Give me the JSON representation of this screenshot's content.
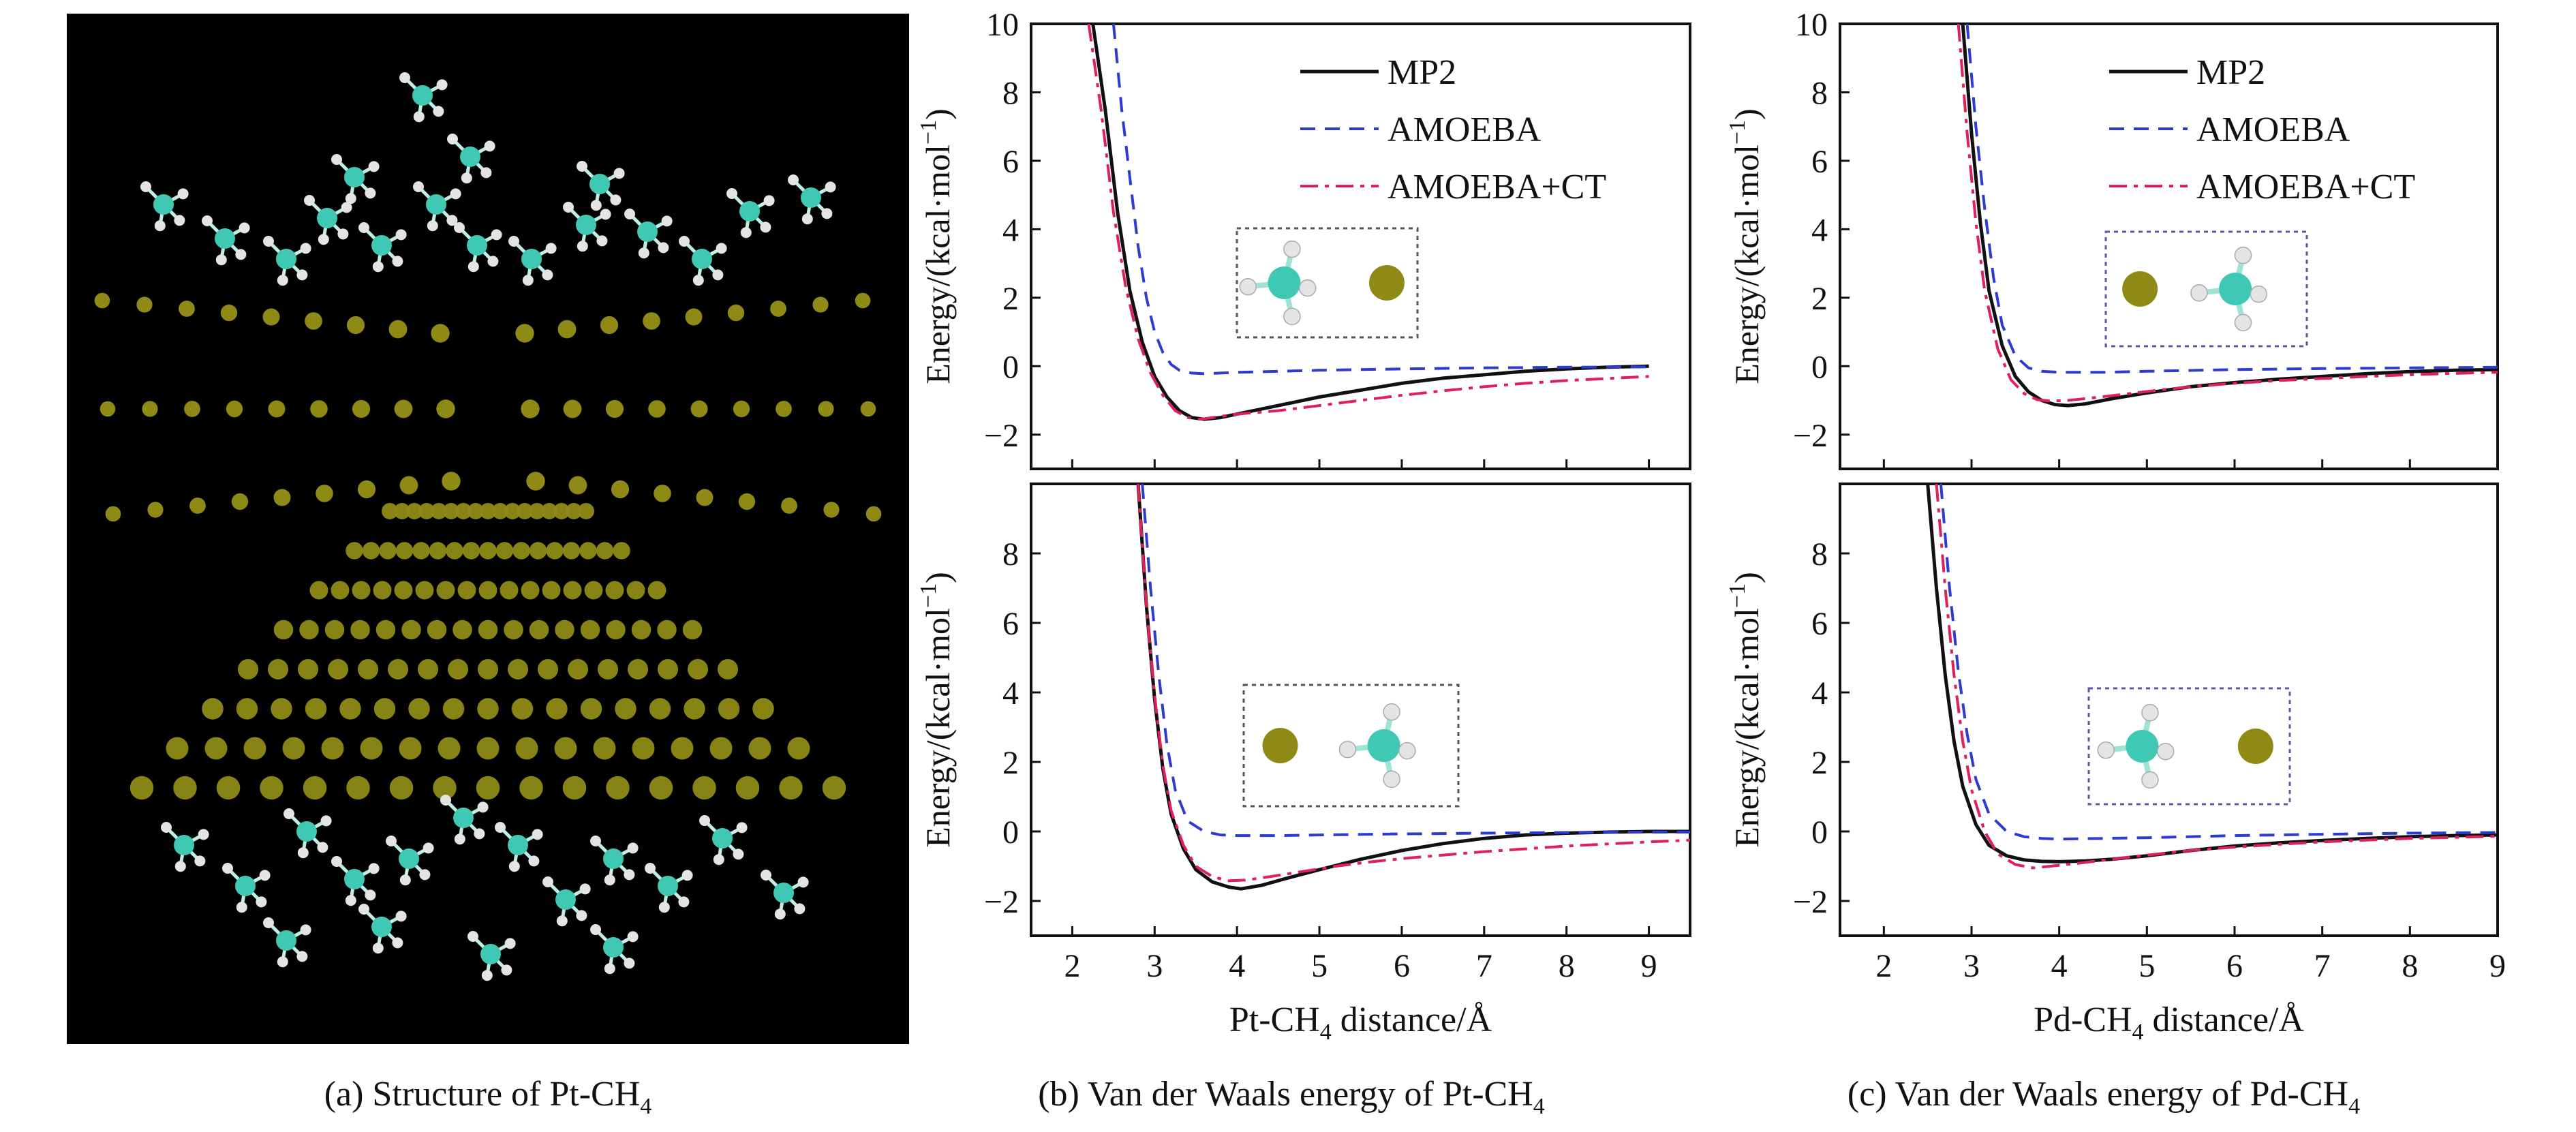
{
  "colors": {
    "mp2": "#111111",
    "amoeba": "#2e3bd1",
    "amoeba_ct": "#e0205a",
    "metal_atom": "#8f8a16",
    "carbon_atom": "#3fc9b4",
    "hydrogen_atom": "#e4e4e4",
    "panel_bg": "#000000"
  },
  "panels": {
    "a": {
      "caption": "(a) Structure of Pt-CH",
      "caption_sub": "4"
    },
    "b": {
      "caption": "(b) Van der Waals energy of Pt-CH",
      "caption_sub": "4"
    },
    "c": {
      "caption": "(c) Van der Waals energy of Pd-CH",
      "caption_sub": "4"
    }
  },
  "chart_data": [
    {
      "id": "pt_top",
      "type": "line",
      "panel": "b",
      "position": "top",
      "xlabel": "",
      "ylabel": "Energy/(kcal·mol−1)",
      "xlim": [
        1.5,
        9.5
      ],
      "ylim": [
        -3,
        10
      ],
      "xticks": [],
      "yticks": [
        10,
        8,
        6,
        4,
        2,
        0,
        -2
      ],
      "ytick_labels": [
        "10",
        "8",
        "6",
        "4",
        "2",
        "0",
        "−2"
      ],
      "legend": [
        "MP2",
        "AMOEBA",
        "AMOEBA+CT"
      ],
      "legend_position": "top-right",
      "series": [
        {
          "name": "MP2",
          "style": "solid",
          "x": [
            2.25,
            2.4,
            2.55,
            2.7,
            2.85,
            3.0,
            3.15,
            3.3,
            3.45,
            3.6,
            3.8,
            4.0,
            4.3,
            4.6,
            5.0,
            5.5,
            6.0,
            6.5,
            7.0,
            7.5,
            8.0,
            8.5,
            9.0
          ],
          "y": [
            10.0,
            7.5,
            4.5,
            2.2,
            0.7,
            -0.3,
            -0.9,
            -1.3,
            -1.5,
            -1.55,
            -1.5,
            -1.4,
            -1.25,
            -1.1,
            -0.9,
            -0.7,
            -0.5,
            -0.35,
            -0.25,
            -0.15,
            -0.08,
            -0.03,
            0.0
          ]
        },
        {
          "name": "AMOEBA",
          "style": "dashed",
          "x": [
            2.5,
            2.6,
            2.7,
            2.8,
            2.9,
            3.0,
            3.1,
            3.2,
            3.3,
            3.45,
            3.6,
            3.8,
            4.0,
            4.5,
            5.0,
            6.0,
            7.0,
            8.0,
            9.0
          ],
          "y": [
            10.0,
            7.5,
            5.5,
            3.5,
            2.0,
            1.0,
            0.4,
            0.05,
            -0.12,
            -0.2,
            -0.22,
            -0.2,
            -0.18,
            -0.15,
            -0.12,
            -0.08,
            -0.05,
            -0.03,
            -0.02
          ]
        },
        {
          "name": "AMOEBA+CT",
          "style": "dashdot",
          "x": [
            2.2,
            2.35,
            2.5,
            2.65,
            2.8,
            2.95,
            3.1,
            3.25,
            3.4,
            3.55,
            3.7,
            4.0,
            4.5,
            5.0,
            5.5,
            6.0,
            6.5,
            7.0,
            7.5,
            8.0,
            8.5,
            9.0
          ],
          "y": [
            10.0,
            7.5,
            4.5,
            2.3,
            0.8,
            -0.2,
            -0.85,
            -1.3,
            -1.5,
            -1.55,
            -1.5,
            -1.4,
            -1.3,
            -1.15,
            -1.0,
            -0.85,
            -0.72,
            -0.6,
            -0.5,
            -0.42,
            -0.36,
            -0.3
          ]
        }
      ]
    },
    {
      "id": "pt_bottom",
      "type": "line",
      "panel": "b",
      "position": "bottom",
      "xlabel": "Pt-CH",
      "xlabel_sub": "4",
      "xlabel_suffix": " distance/Å",
      "ylabel": "Energy/(kcal·mol−1)",
      "xlim": [
        1.5,
        9.5
      ],
      "ylim": [
        -3,
        10
      ],
      "xticks": [
        2,
        3,
        4,
        5,
        6,
        7,
        8,
        9
      ],
      "xtick_labels": [
        "2",
        "3",
        "4",
        "5",
        "6",
        "7",
        "8",
        "9"
      ],
      "yticks": [
        8,
        6,
        4,
        2,
        0,
        -2
      ],
      "ytick_labels": [
        "8",
        "6",
        "4",
        "2",
        "0",
        "−2"
      ],
      "series": [
        {
          "name": "MP2",
          "style": "solid",
          "x": [
            2.8,
            2.9,
            3.0,
            3.1,
            3.2,
            3.35,
            3.5,
            3.7,
            3.9,
            4.05,
            4.3,
            4.6,
            5.0,
            5.5,
            6.0,
            6.5,
            7.0,
            7.5,
            8.0,
            8.5,
            9.0,
            9.5
          ],
          "y": [
            10.0,
            6.5,
            3.8,
            1.8,
            0.5,
            -0.5,
            -1.1,
            -1.45,
            -1.6,
            -1.65,
            -1.55,
            -1.35,
            -1.1,
            -0.8,
            -0.55,
            -0.35,
            -0.2,
            -0.1,
            -0.05,
            -0.02,
            0.0,
            0.0
          ]
        },
        {
          "name": "AMOEBA",
          "style": "dashed",
          "x": [
            2.85,
            2.95,
            3.05,
            3.15,
            3.25,
            3.4,
            3.6,
            3.8,
            4.0,
            4.5,
            5.0,
            6.0,
            7.0,
            8.0,
            9.0,
            9.5
          ],
          "y": [
            10.0,
            7.0,
            4.5,
            2.5,
            1.2,
            0.3,
            0.0,
            -0.1,
            -0.12,
            -0.12,
            -0.1,
            -0.07,
            -0.05,
            -0.03,
            -0.02,
            -0.02
          ]
        },
        {
          "name": "AMOEBA+CT",
          "style": "dashdot",
          "x": [
            2.8,
            2.9,
            3.0,
            3.1,
            3.2,
            3.35,
            3.5,
            3.7,
            3.9,
            4.1,
            4.4,
            4.8,
            5.2,
            5.6,
            6.0,
            6.5,
            7.0,
            7.5,
            8.0,
            8.5,
            9.0,
            9.5
          ],
          "y": [
            10.0,
            6.5,
            3.9,
            1.9,
            0.6,
            -0.4,
            -1.0,
            -1.3,
            -1.42,
            -1.4,
            -1.3,
            -1.15,
            -1.0,
            -0.88,
            -0.78,
            -0.68,
            -0.58,
            -0.5,
            -0.42,
            -0.36,
            -0.3,
            -0.25
          ]
        }
      ]
    },
    {
      "id": "pd_top",
      "type": "line",
      "panel": "c",
      "position": "top",
      "xlabel": "",
      "ylabel": "Energy/(kcal·mol−1)",
      "xlim": [
        1.5,
        9.0
      ],
      "ylim": [
        -3,
        10
      ],
      "xticks": [],
      "yticks": [
        10,
        8,
        6,
        4,
        2,
        0,
        -2
      ],
      "ytick_labels": [
        "10",
        "8",
        "6",
        "4",
        "2",
        "0",
        "−2"
      ],
      "legend": [
        "MP2",
        "AMOEBA",
        "AMOEBA+CT"
      ],
      "legend_position": "top-right",
      "series": [
        {
          "name": "MP2",
          "style": "solid",
          "x": [
            2.9,
            3.0,
            3.1,
            3.2,
            3.35,
            3.5,
            3.65,
            3.8,
            3.95,
            4.1,
            4.3,
            4.6,
            5.0,
            5.5,
            6.0,
            6.5,
            7.0,
            7.5,
            8.0,
            8.5,
            9.0
          ],
          "y": [
            10.0,
            6.8,
            4.2,
            2.2,
            0.6,
            -0.3,
            -0.75,
            -1.0,
            -1.12,
            -1.15,
            -1.1,
            -0.95,
            -0.78,
            -0.6,
            -0.48,
            -0.38,
            -0.3,
            -0.22,
            -0.16,
            -0.12,
            -0.1
          ]
        },
        {
          "name": "AMOEBA",
          "style": "dashed",
          "x": [
            2.95,
            3.05,
            3.15,
            3.25,
            3.35,
            3.5,
            3.65,
            3.8,
            4.0,
            4.5,
            5.0,
            6.0,
            7.0,
            8.0,
            9.0
          ],
          "y": [
            10.0,
            7.0,
            4.6,
            2.6,
            1.2,
            0.3,
            -0.05,
            -0.15,
            -0.18,
            -0.18,
            -0.15,
            -0.1,
            -0.07,
            -0.05,
            -0.03
          ]
        },
        {
          "name": "AMOEBA+CT",
          "style": "dashdot",
          "x": [
            2.85,
            2.95,
            3.05,
            3.15,
            3.3,
            3.45,
            3.6,
            3.75,
            3.9,
            4.1,
            4.4,
            4.8,
            5.2,
            5.6,
            6.0,
            6.5,
            7.0,
            7.5,
            8.0,
            8.5,
            9.0
          ],
          "y": [
            10.0,
            6.8,
            4.2,
            2.2,
            0.5,
            -0.4,
            -0.8,
            -0.98,
            -1.02,
            -1.0,
            -0.92,
            -0.8,
            -0.68,
            -0.58,
            -0.5,
            -0.42,
            -0.36,
            -0.3,
            -0.25,
            -0.21,
            -0.18
          ]
        }
      ]
    },
    {
      "id": "pd_bottom",
      "type": "line",
      "panel": "c",
      "position": "bottom",
      "xlabel": "Pd-CH",
      "xlabel_sub": "4",
      "xlabel_suffix": " distance/Å",
      "ylabel": "Energy/(kcal·mol−1)",
      "xlim": [
        1.5,
        9.0
      ],
      "ylim": [
        -3,
        10
      ],
      "xticks": [
        2,
        3,
        4,
        5,
        6,
        7,
        8,
        9
      ],
      "xtick_labels": [
        "2",
        "3",
        "4",
        "5",
        "6",
        "7",
        "8",
        "9"
      ],
      "yticks": [
        8,
        6,
        4,
        2,
        0,
        -2
      ],
      "ytick_labels": [
        "8",
        "6",
        "4",
        "2",
        "0",
        "−2"
      ],
      "series": [
        {
          "name": "MP2",
          "style": "solid",
          "x": [
            2.5,
            2.6,
            2.7,
            2.8,
            2.9,
            3.05,
            3.2,
            3.4,
            3.6,
            3.8,
            4.0,
            4.3,
            4.6,
            5.0,
            5.5,
            6.0,
            6.5,
            7.0,
            7.5,
            8.0,
            8.5,
            9.0
          ],
          "y": [
            10.0,
            7.0,
            4.5,
            2.6,
            1.3,
            0.2,
            -0.4,
            -0.7,
            -0.82,
            -0.86,
            -0.87,
            -0.85,
            -0.8,
            -0.7,
            -0.55,
            -0.42,
            -0.33,
            -0.26,
            -0.2,
            -0.15,
            -0.12,
            -0.1
          ]
        },
        {
          "name": "AMOEBA",
          "style": "dashed",
          "x": [
            2.65,
            2.75,
            2.85,
            2.95,
            3.05,
            3.2,
            3.4,
            3.6,
            3.8,
            4.0,
            4.5,
            5.0,
            6.0,
            7.0,
            8.0,
            9.0
          ],
          "y": [
            10.0,
            7.0,
            4.6,
            2.8,
            1.5,
            0.5,
            0.0,
            -0.15,
            -0.2,
            -0.22,
            -0.2,
            -0.18,
            -0.12,
            -0.08,
            -0.05,
            -0.03
          ]
        },
        {
          "name": "AMOEBA+CT",
          "style": "dashdot",
          "x": [
            2.6,
            2.7,
            2.8,
            2.9,
            3.0,
            3.15,
            3.3,
            3.5,
            3.7,
            3.9,
            4.2,
            4.6,
            5.0,
            5.5,
            6.0,
            6.5,
            7.0,
            7.5,
            8.0,
            8.5,
            9.0
          ],
          "y": [
            10.0,
            7.0,
            4.5,
            2.6,
            1.2,
            0.0,
            -0.65,
            -0.95,
            -1.05,
            -1.0,
            -0.92,
            -0.8,
            -0.68,
            -0.55,
            -0.45,
            -0.37,
            -0.3,
            -0.25,
            -0.2,
            -0.17,
            -0.14
          ]
        }
      ]
    }
  ]
}
